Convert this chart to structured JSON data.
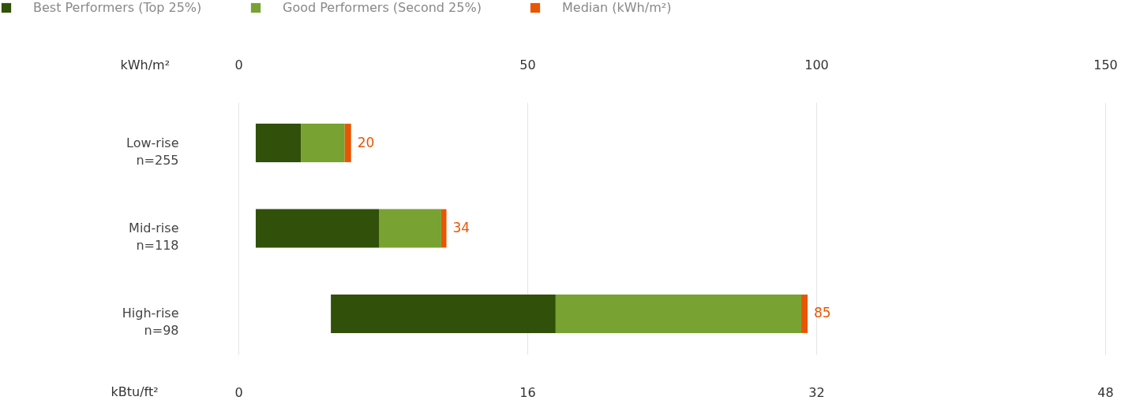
{
  "chart_data": {
    "type": "bar",
    "orientation": "horizontal",
    "stacked": true,
    "categories": [
      "Low-rise\nn=255",
      "Mid-rise\nn=118",
      "High-rise\nn=98"
    ],
    "series": [
      {
        "name": "Best Performers (Top 25%)",
        "color": "#31500a",
        "values": [
          7.8,
          21.4,
          38.9
        ],
        "base": [
          3,
          3,
          16
        ]
      },
      {
        "name": "Good Performers (Second 25%)",
        "color": "#78a232",
        "values": [
          7.6,
          10.7,
          42.5
        ]
      },
      {
        "name": "Median (kWh/m²)",
        "color": "#e85604",
        "values": [
          1.1,
          0.9,
          1.1
        ]
      }
    ],
    "annotations": [
      "20",
      "34",
      "85"
    ],
    "xlabel": "kWh/m²",
    "xlim": [
      0,
      150
    ],
    "xticks": [
      0,
      50,
      100,
      150
    ],
    "x2label": "kBtu/ft²",
    "x2lim": [
      0,
      48
    ],
    "x2ticks": [
      0,
      16,
      32,
      48
    ],
    "grid": "x",
    "legend": "top left"
  }
}
